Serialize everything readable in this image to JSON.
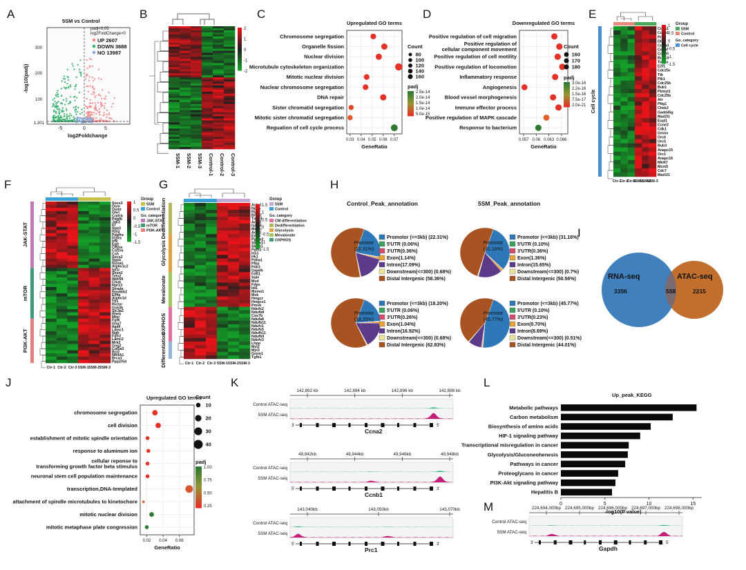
{
  "panel_letters": [
    "A",
    "B",
    "C",
    "D",
    "E",
    "F",
    "G",
    "H",
    "I",
    "J",
    "K",
    "L",
    "M"
  ],
  "volcano": {
    "title": "5SM vs Control",
    "legend_title": "padj<0.05",
    "legend_sub": "log2FoldChange>0",
    "legend": [
      {
        "label": "UP 2607",
        "color": "#f28a8a"
      },
      {
        "label": "DOWN 3688",
        "color": "#3cb371"
      },
      {
        "label": "NO 13987",
        "color": "#8aa9d6"
      }
    ],
    "xlabel": "log2Foldchange",
    "ylabel": "-log10(padj)",
    "yticks": [
      "300",
      "200",
      "100",
      "1.301"
    ],
    "xticks": [
      "-5",
      "0",
      "5"
    ]
  },
  "heatmapB": {
    "columns": [
      "5SM-1",
      "5SM-2",
      "5SM-3",
      "Control-1",
      "Control-2",
      "Control-3"
    ],
    "scale": [
      "2",
      "1",
      "0",
      "-1",
      "-2"
    ]
  },
  "chart_data": [
    {
      "type": "scatter",
      "title": "Upregulated GO terms",
      "xlabel": "GeneRatio",
      "categories": [
        "Chromosome segregation",
        "Organelle fission",
        "Nuclear division",
        "Microtubule cytoskeleton organization",
        "Mitotic nuclear division",
        "Nuclear chromosome segregation",
        "DNA repair",
        "Sister chromatid segregation",
        "Mitotic sister chromatid segregation",
        "Reguation of cell cycle process"
      ],
      "values": [
        0.051,
        0.061,
        0.056,
        0.074,
        0.045,
        0.044,
        0.06,
        0.031,
        0.03,
        0.07
      ],
      "sizes": [
        100,
        120,
        120,
        160,
        100,
        100,
        120,
        80,
        80,
        140
      ],
      "padj_colors": [
        "#e53228",
        "#e53228",
        "#e53228",
        "#e53228",
        "#e53228",
        "#e53228",
        "#e53228",
        "#e04a2c",
        "#e8552e",
        "#2e7a32"
      ],
      "xticks": [
        0.03,
        0.04,
        0.05,
        0.06,
        0.07
      ],
      "xlim": [
        0.027,
        0.077
      ],
      "size_title": "Count",
      "size_legend": [
        "80",
        "100",
        "120",
        "140",
        "160"
      ],
      "color_title": "padj",
      "color_legend": [
        "2.5e-14",
        "2.0e-14",
        "1.5e-14",
        "1.0e-14",
        "5.0e-15"
      ]
    },
    {
      "type": "scatter",
      "title": "Downregulated GO terms",
      "xlabel": "GeneRatio",
      "categories": [
        "Positive regulation of cell migration",
        "Positive regulation of cellular component movement",
        "Positive regulation of cell motility",
        "Positive regulation of locomotion",
        "Inflammatory response",
        "Angiogenesis",
        "Blood vessel morphogenesis",
        "Immune effector process",
        "Positive regulation of MAPK cascade",
        "Response to bacterium"
      ],
      "values": [
        0.0643,
        0.0655,
        0.0651,
        0.0662,
        0.0645,
        0.0572,
        0.064,
        0.0653,
        0.0624,
        0.0605
      ],
      "sizes": [
        175,
        180,
        180,
        180,
        170,
        160,
        175,
        178,
        165,
        170
      ],
      "padj_colors": [
        "#e53228",
        "#e53228",
        "#e53228",
        "#e53228",
        "#e53228",
        "#e53228",
        "#e53228",
        "#e53228",
        "#e0602c",
        "#2e7a32"
      ],
      "xticks": [
        0.057,
        0.06,
        0.063,
        0.066
      ],
      "xlim": [
        0.056,
        0.0675
      ],
      "size_title": "Count",
      "size_legend": [
        "160",
        "170",
        "180"
      ],
      "color_title": "padj",
      "color_legend": [
        "3.0e-16",
        "2.2e-16",
        "1.5e-16",
        "7.5e-17",
        "2.0e-21"
      ]
    },
    {
      "type": "pie",
      "title": "Control_Peak_annotation",
      "categories": [
        "Promotor (<=3kb)",
        "5'UTR",
        "3'UTR",
        "Exon",
        "Intron",
        "Downstream(<=300)",
        "Distal Intergenic"
      ],
      "values": [
        22.31,
        0.06,
        0.36,
        1.14,
        17.09,
        0.68,
        58.36
      ],
      "labels": [
        "Promotor (<=3kb) (22.31%)",
        "5'UTR (0.06%)",
        "3'UTR(0.36%)",
        "Exon(1.14%)",
        "Intron(17.09%)",
        "Downstream(<=300) (0.68%)",
        "Distal Intergenic (58.36%)"
      ],
      "center_label": "Promotor",
      "center_value": "(22.31%)"
    },
    {
      "type": "pie",
      "title": "5SM_Peak_annotation",
      "categories": [
        "Promotor (<=3kb)",
        "5'UTR",
        "3'UTR",
        "Exon",
        "Intron",
        "Downstream(<=300)",
        "Distal Intergenic"
      ],
      "values": [
        31.16,
        0.1,
        0.36,
        1.36,
        15.65,
        0.7,
        50.56
      ],
      "labels": [
        "Promotor (<=3kb) (31.16%)",
        "5'UTR (0.10%)",
        "3'UTR(0.36%)",
        "Exon(1.36%)",
        "Intron(15.65%)",
        "Downstream(<=300) (0.7%)",
        "Distal Intergenic (50.56%)"
      ],
      "center_label": "Promotor",
      "center_value": "(31.16%)"
    },
    {
      "type": "pie",
      "title": "",
      "categories": [
        "Promotor (<=3kb)",
        "5'UTR",
        "3'UTR",
        "Exon",
        "Intron",
        "Downstream(<=300)",
        "Distal Intergenic"
      ],
      "values": [
        18.2,
        0.06,
        0.26,
        1.04,
        16.92,
        0.68,
        62.83
      ],
      "labels": [
        "Promotor (<=3kb) (18.20%)",
        "5'UTR (0.06%)",
        "3'UTR(0.26%)",
        "Exon(1.04%)",
        "Intron(16.92%)",
        "Downstream(<=300) (0.68%)",
        "Distal Intergenic (62.83%)"
      ],
      "center_label": "Promotor",
      "center_value": "(18.20%)"
    },
    {
      "type": "pie",
      "title": "",
      "categories": [
        "Promotor (<=3kb)",
        "5'UTR",
        "3'UTR",
        "Exon",
        "Intron",
        "Downstream(<=300)",
        "Distal Intergenic"
      ],
      "values": [
        45.77,
        0.1,
        0.23,
        0.7,
        8.69,
        0.51,
        44.01
      ],
      "labels": [
        "Promotor (<=3kb) (45.77%)",
        "5'UTR (0.10%)",
        "3'UTR(0.23%)",
        "Exon(0.70%)",
        "Intron(8.69%)",
        "Downstream(<=300) (0.51%)",
        "Distal Intergenic (44.01%)"
      ],
      "center_label": "Promotor",
      "center_value": "(45.77%)"
    },
    {
      "type": "scatter",
      "title": "Upregulated GO terms",
      "xlabel": "GeneRatio",
      "categories": [
        "chromosome segregation",
        "cell division",
        "establishment of mitotic spindle orientation",
        "response to aluminum ion",
        "cellular reponse to transforming growth factor beta stimulus",
        "neuronal stem cell population maintenance",
        "transcription,DNA-templated",
        "attachment of spindle microtubules to kinetochore",
        "mitotic nuclear division",
        "mitotic metaphase plate congression"
      ],
      "values": [
        0.03,
        0.034,
        0.021,
        0.022,
        0.021,
        0.021,
        0.072,
        0.016,
        0.026,
        0.02
      ],
      "sizes": [
        20,
        20,
        10,
        10,
        10,
        10,
        40,
        5,
        15,
        10
      ],
      "padj_colors": [
        "#e53228",
        "#e53228",
        "#e53228",
        "#e53228",
        "#e53228",
        "#e53228",
        "#d8582e",
        "#e0602c",
        "#2e7a32",
        "#2e7a32"
      ],
      "xticks": [
        0.02,
        0.04,
        0.06
      ],
      "xlim": [
        0.012,
        0.078
      ],
      "size_title": "Count",
      "size_legend": [
        "10",
        "20",
        "30",
        "40"
      ],
      "color_title": "padj",
      "color_legend": [
        "1.00",
        "0.75",
        "0.50",
        "0.25"
      ]
    },
    {
      "type": "bar",
      "title": "Up_peak_KEGG",
      "xlabel": "-log10(P value)",
      "categories": [
        "Metabolic pathways",
        "Carbon metabolism",
        "Biosynthesis of amino acids",
        "HIF-1 signaling pathway",
        "Transcriptional misregulation in cancer",
        "Glycolysis/Gluconeohenesis",
        "Pathways in cancer",
        "Proteoglycans in cancer",
        "PI3K-Akt signaling pathway",
        "Hepatitis B"
      ],
      "values": [
        15.4,
        12.7,
        10.2,
        9.0,
        7.7,
        7.6,
        7.3,
        6.5,
        6.2,
        5.8
      ],
      "xticks": [
        0,
        5,
        10,
        15
      ],
      "xlim": [
        0,
        16
      ]
    }
  ],
  "heatmapE": {
    "group_title": "Group",
    "group_items": [
      "5SM",
      "Control"
    ],
    "category_title": "Go. category",
    "category_items": [
      "Cell cycle"
    ],
    "row_group": "Cell cycle",
    "scale": [
      "1",
      "0.5",
      "0",
      "-0.5",
      "-1",
      "-1.5"
    ],
    "genes": [
      "Ccna1",
      "Ccnb1",
      "Prc1",
      "Dbf4",
      "Cdkn3",
      "Cenpf",
      "Cdc20",
      "Bub1b",
      "Top2a",
      "E2f1",
      "Cdc25c",
      "Ttk",
      "Plk1",
      "Cdc25b",
      "Bub1",
      "Pkmyt1",
      "Cdc25b",
      "Atr",
      "Pttg1",
      "Chek2",
      "Gadd45g",
      "Mad2l1",
      "Espl1",
      "Ccne2",
      "Cdk1",
      "Gmnn",
      "Orc6",
      "Orc5",
      "Bub3",
      "Anapc15",
      "Orc1",
      "Anapc16",
      "Mki67",
      "Mcm5",
      "Cdc7",
      "Mad1l1"
    ],
    "columns": [
      "Ctr-1",
      "Ctr-2",
      "Ctr-3",
      "5SM-1",
      "5SM-2",
      "5SM-3"
    ]
  },
  "heatmapF": {
    "group_title": "Group",
    "group_items": [
      "5SM",
      "Control"
    ],
    "category_title": "Go. category",
    "category_items": [
      "JAK-STAT",
      "mTOR",
      "PI3K-AKT"
    ],
    "row_groups": [
      "JAK-STAT",
      "mTOR",
      "PI3K-AKT"
    ],
    "scale": [
      "1",
      "0.5",
      "0",
      "-0.5",
      "-1",
      "-1.5"
    ],
    "genes": [
      "Socs3",
      "Osm",
      "Osmr",
      "Ghrl",
      "Cntfrb",
      "Pdgfb",
      "Jak3",
      "Il7",
      "Stat3",
      "Il2rg",
      "Pdgfra",
      "Il10ra",
      "Irf9",
      "Egfr",
      "Clf2ra",
      "Csf2ra",
      "Csh",
      "Socs2",
      "Stat4",
      "Il11ra1",
      "Atp6v1c2",
      "Igf1r",
      "Sesn2",
      "Telo2",
      "Wdr59",
      "Chuk",
      "Npr13",
      "Strada",
      "Rps6kb2",
      "Eif4e",
      "Atp6v1d",
      "Tti1",
      "Rictor",
      "Gsk3b",
      "Slc3a2",
      "Rheb",
      "Mtor",
      "Fgf8",
      "Gng7",
      "Itga4",
      "Lamc1",
      "Ngfr",
      "Fgfr2",
      "Lamc2",
      "Mrk2",
      "Gng2",
      "Col5a3",
      "Bcl2",
      "NR4A1",
      "Brca1",
      "Ppp2r5d"
    ],
    "columns": [
      "Ctr-1",
      "Ctr-2",
      "Ctr-3",
      "5SM-1",
      "5SM-2",
      "5SM-3"
    ]
  },
  "heatmapG": {
    "group_title": "Group",
    "group_items": [
      "5SM",
      "Control"
    ],
    "category_title": "Go. category",
    "category_items": [
      "CM differentiation",
      "Dedifferentiation",
      "Glycolysis",
      "Mevalonate",
      "OXPHOS"
    ],
    "row_groups": [
      "Dedifferentiation",
      "Glycolysis",
      "Mevalonate",
      "OXPHOS",
      "Differentiation"
    ],
    "scale": [
      "1.5",
      "1",
      "0.5",
      "0",
      "-0.5",
      "-1",
      "-1.5"
    ],
    "genes": [
      "Acta1",
      "Nppa",
      "Rgs2",
      "Bmp2",
      "Tnc20",
      "Acta2",
      "Gata4",
      "Mef2c",
      "Actc1",
      "Eno3",
      "Pgam2",
      "Slc2a1",
      "Slc2a1",
      "Pgm1",
      "Ins1",
      "Hk1",
      "Pdha1",
      "Pfkp",
      "Pdk3",
      "Gapdh",
      "Fdft1",
      "Sqle",
      "Mvd",
      "Fdps",
      "Idi1",
      "Msmo1",
      "Mvk",
      "Hmgcr",
      "Hmgcs1",
      "Pmvk",
      "Ndufs2",
      "Ndufb8",
      "Cox7b",
      "Ndufa8",
      "Ndufb11",
      "Ndufv1",
      "Ndufs5",
      "Ndufb11",
      "Ndufb9",
      "Ndufv3",
      "Lhpp",
      "Myl2",
      "Myl3",
      "Grem1",
      "Tgfb1"
    ],
    "columns": [
      "Ctr-1",
      "Ctr-2",
      "Ctr-3",
      "5SM-1",
      "5SM-2",
      "5SM-3"
    ]
  },
  "venn": {
    "title": "UP",
    "left_label": "RNA-seq",
    "right_label": "ATAC-seq",
    "left_only": "3356",
    "overlap": "558",
    "right_only": "2215"
  },
  "tracks": [
    {
      "coords": [
        "142,892 kb",
        "142,894 kb",
        "142,896 kb",
        "142,898 kb"
      ],
      "labels": [
        "Control ATAC-seq",
        "5SM ATAC-seq"
      ],
      "gene": "Ccna2",
      "ends": [
        "3'",
        "5'"
      ]
    },
    {
      "coords": [
        "49,942kb",
        "49,944kb",
        "49,946kb",
        "49,948kb"
      ],
      "labels": [
        "Control ATAC-seq",
        "5SM ATAC-seq"
      ],
      "gene": "Ccnb1",
      "ends": [
        "5'",
        "3'"
      ]
    },
    {
      "coords": [
        "143,040kb",
        "143,050kb",
        "143,070kb"
      ],
      "labels": [
        "Control ATAC-seq",
        "5SM ATAC-seq"
      ],
      "gene": "Prc1",
      "ends": [
        "5'",
        "3'"
      ]
    },
    {
      "coords": [
        "224,694,000bp",
        "224,695,000bp",
        "224,696,000bp",
        "224,697,000bp",
        "224,698,000bp"
      ],
      "labels": [
        "Control ATAC-seq",
        "5SM ATAC-seq"
      ],
      "gene": "Gapdh",
      "ends": [
        "3'",
        "5'"
      ]
    }
  ]
}
